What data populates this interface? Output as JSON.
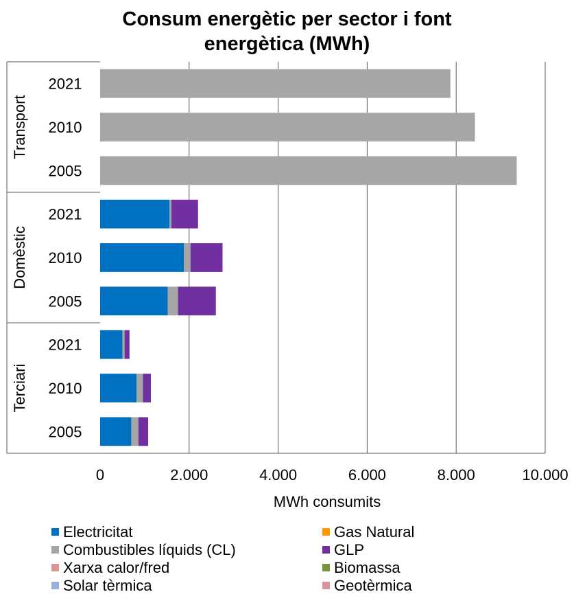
{
  "chart_data": {
    "type": "bar",
    "orientation": "horizontal",
    "stacked": true,
    "title_lines": [
      "Consum energètic per sector i font",
      "energètica (MWh)"
    ],
    "xlabel": "MWh consumits",
    "ylabel": "",
    "xlim": [
      0,
      10000
    ],
    "xticks": [
      0,
      2000,
      4000,
      6000,
      8000,
      10000
    ],
    "xtick_labels": [
      "0",
      "2.000",
      "4.000",
      "6.000",
      "8.000",
      "10.000"
    ],
    "grid": "vertical",
    "legend_position": "bottom",
    "groups": [
      {
        "name": "Transport",
        "categories": [
          "2021",
          "2010",
          "2005"
        ]
      },
      {
        "name": "Domèstic",
        "categories": [
          "2021",
          "2010",
          "2005"
        ]
      },
      {
        "name": "Terciari",
        "categories": [
          "2021",
          "2010",
          "2005"
        ]
      }
    ],
    "series": [
      {
        "name": "Electricitat",
        "color": "#0070C0",
        "values": [
          0,
          0,
          0,
          1560,
          1880,
          1520,
          500,
          820,
          700
        ]
      },
      {
        "name": "Combustibles líquids (CL)",
        "color": "#A6A6A6",
        "values": [
          7870,
          8420,
          9360,
          40,
          150,
          230,
          50,
          140,
          160
        ]
      },
      {
        "name": "GLP",
        "color": "#7030A0",
        "values": [
          0,
          0,
          0,
          600,
          720,
          850,
          110,
          180,
          220
        ]
      },
      {
        "name": "Gas Natural",
        "color": "#FF9900",
        "values": [
          0,
          0,
          0,
          0,
          0,
          0,
          0,
          0,
          0
        ]
      },
      {
        "name": "Xarxa calor/fred",
        "color": "#D99694",
        "values": [
          0,
          0,
          0,
          0,
          0,
          0,
          0,
          0,
          0
        ]
      },
      {
        "name": "Biomassa",
        "color": "#77933C",
        "values": [
          0,
          0,
          0,
          0,
          0,
          0,
          0,
          0,
          0
        ]
      },
      {
        "name": "Solar tèrmica",
        "color": "#95B3D7",
        "values": [
          0,
          0,
          0,
          0,
          0,
          0,
          0,
          0,
          0
        ]
      },
      {
        "name": "Geotèrmica",
        "color": "#D99694",
        "values": [
          0,
          0,
          0,
          0,
          0,
          0,
          0,
          0,
          0
        ]
      }
    ],
    "legend_order": [
      "Electricitat",
      "Gas Natural",
      "Combustibles líquids (CL)",
      "GLP",
      "Xarxa calor/fred",
      "Biomassa",
      "Solar tèrmica",
      "Geotèrmica"
    ]
  }
}
